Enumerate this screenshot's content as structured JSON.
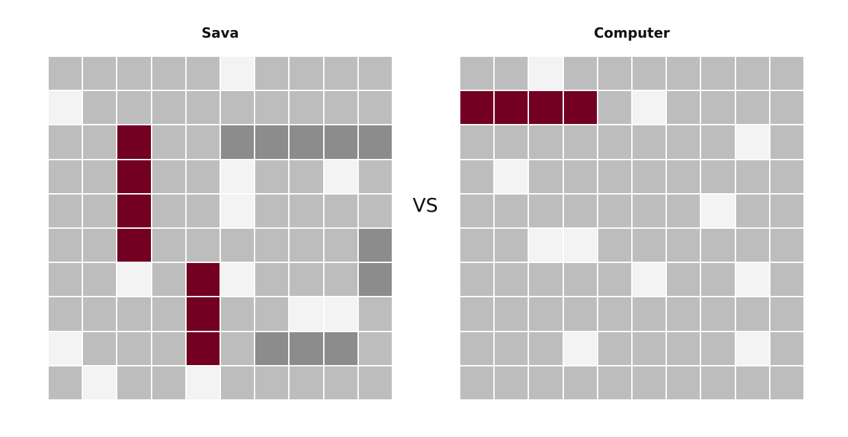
{
  "player": {
    "title": "Sava",
    "board": [
      "eeeeemeeee",
      "meeeeeeeee",
      "eeseeddddd",
      "eeseemeeme",
      "eeseemeeee",
      "eeseeeeeed",
      "eemesmeeed",
      "eeeeseemme",
      "meeeseddde",
      "emeemeeeee"
    ]
  },
  "vs_label": "VS",
  "computer": {
    "title": "Computer",
    "board": [
      "eemeeeeeee",
      "ssssemeeee",
      "eeeeeeeeme",
      "emeeeeeeee",
      "eeeeeeemee",
      "eemmeeeeee",
      "eeeeemeeme",
      "eeeeeeeeee",
      "eeemeeeeme",
      "eeeeeeeeee"
    ]
  },
  "legend_colors": {
    "empty": "#bdbdbd",
    "miss": "#f3f3f3",
    "ship": "#730022",
    "sunk": "#8c8c8c"
  }
}
